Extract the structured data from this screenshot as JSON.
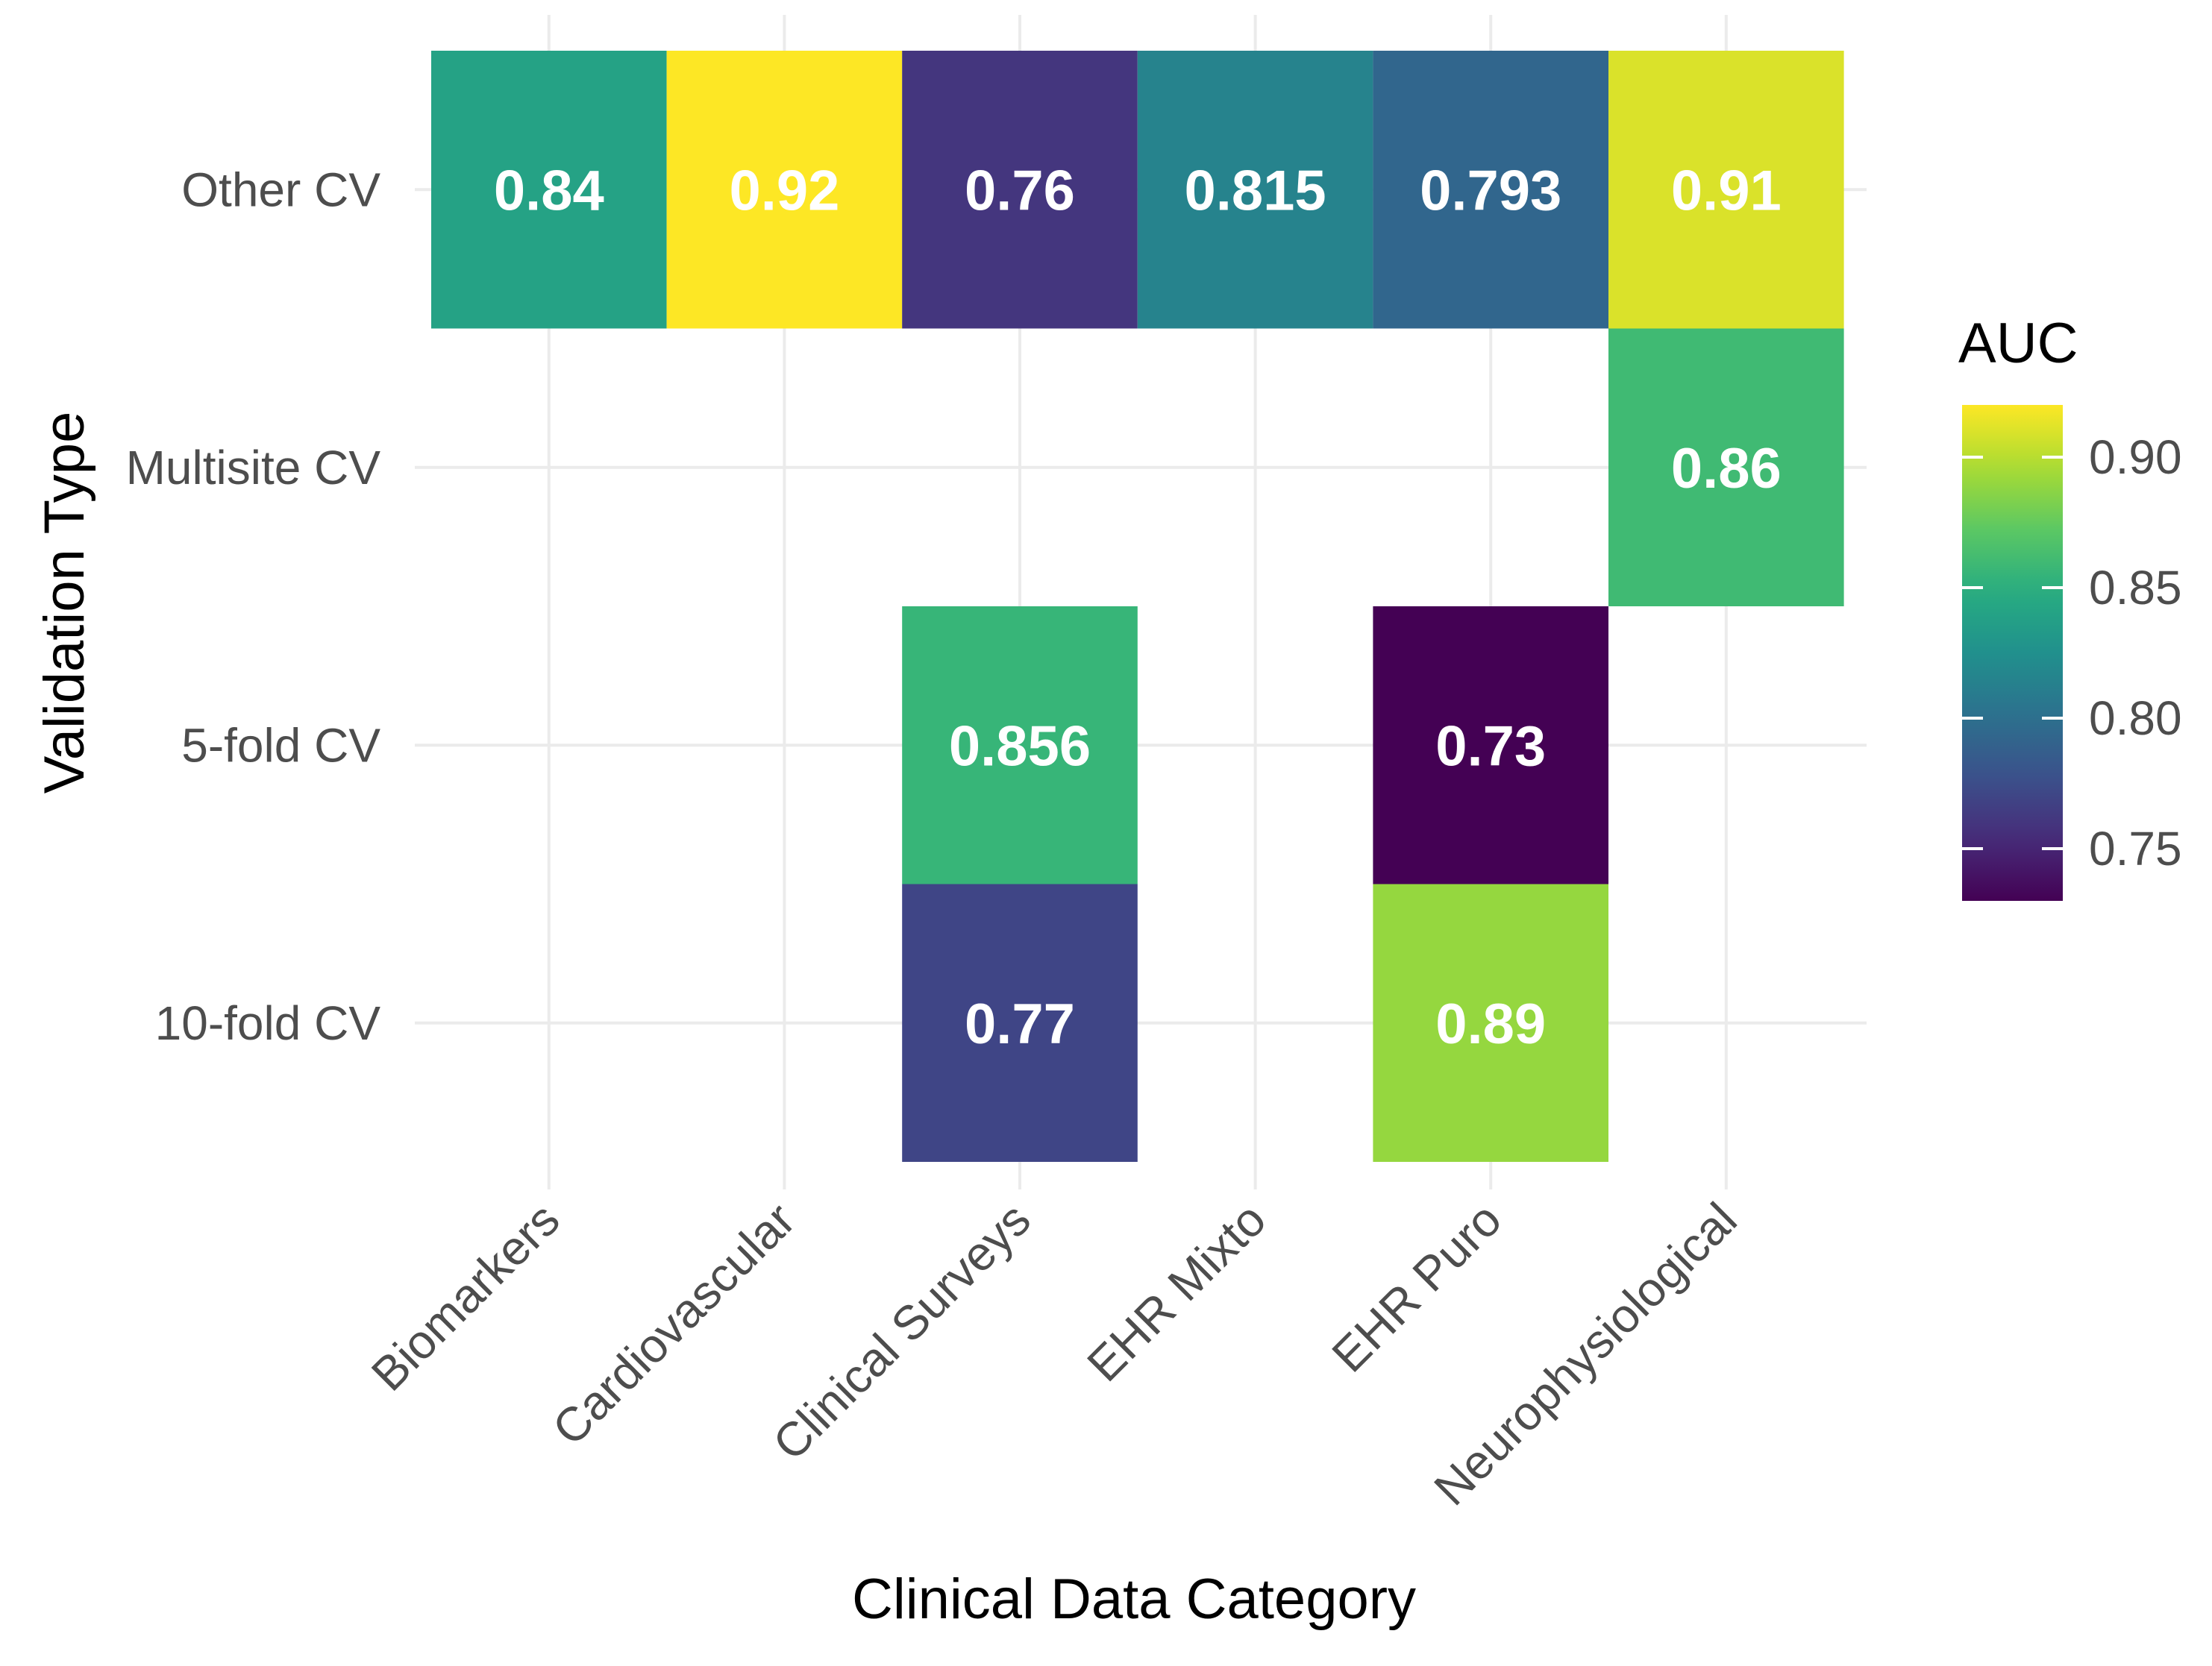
{
  "chart_data": {
    "type": "heatmap",
    "xlabel": "Clinical Data Category",
    "ylabel": "Validation Type",
    "x_categories": [
      "Biomarkers",
      "Cardiovascular",
      "Clinical Surveys",
      "EHR Mixto",
      "EHR Puro",
      "Neurophysiological"
    ],
    "y_categories": [
      "Other CV",
      "Multisite CV",
      "5-fold CV",
      "10-fold CV"
    ],
    "cells": [
      {
        "x": "Biomarkers",
        "y": "Other CV",
        "value": 0.84,
        "label": "0.84"
      },
      {
        "x": "Cardiovascular",
        "y": "Other CV",
        "value": 0.92,
        "label": "0.92"
      },
      {
        "x": "Clinical Surveys",
        "y": "Other CV",
        "value": 0.76,
        "label": "0.76"
      },
      {
        "x": "EHR Mixto",
        "y": "Other CV",
        "value": 0.815,
        "label": "0.815"
      },
      {
        "x": "EHR Puro",
        "y": "Other CV",
        "value": 0.793,
        "label": "0.793"
      },
      {
        "x": "Neurophysiological",
        "y": "Other CV",
        "value": 0.91,
        "label": "0.91"
      },
      {
        "x": "Neurophysiological",
        "y": "Multisite CV",
        "value": 0.86,
        "label": "0.86"
      },
      {
        "x": "Clinical Surveys",
        "y": "5-fold CV",
        "value": 0.856,
        "label": "0.856"
      },
      {
        "x": "EHR Puro",
        "y": "5-fold CV",
        "value": 0.73,
        "label": "0.73"
      },
      {
        "x": "Clinical Surveys",
        "y": "10-fold CV",
        "value": 0.77,
        "label": "0.77"
      },
      {
        "x": "EHR Puro",
        "y": "10-fold CV",
        "value": 0.89,
        "label": "0.89"
      }
    ],
    "legend": {
      "title": "AUC",
      "range": [
        0.73,
        0.92
      ],
      "ticks": [
        0.75,
        0.8,
        0.85,
        0.9
      ],
      "tick_labels": [
        "0.75",
        "0.80",
        "0.85",
        "0.90"
      ],
      "colormap": "viridis",
      "position": "right"
    }
  }
}
